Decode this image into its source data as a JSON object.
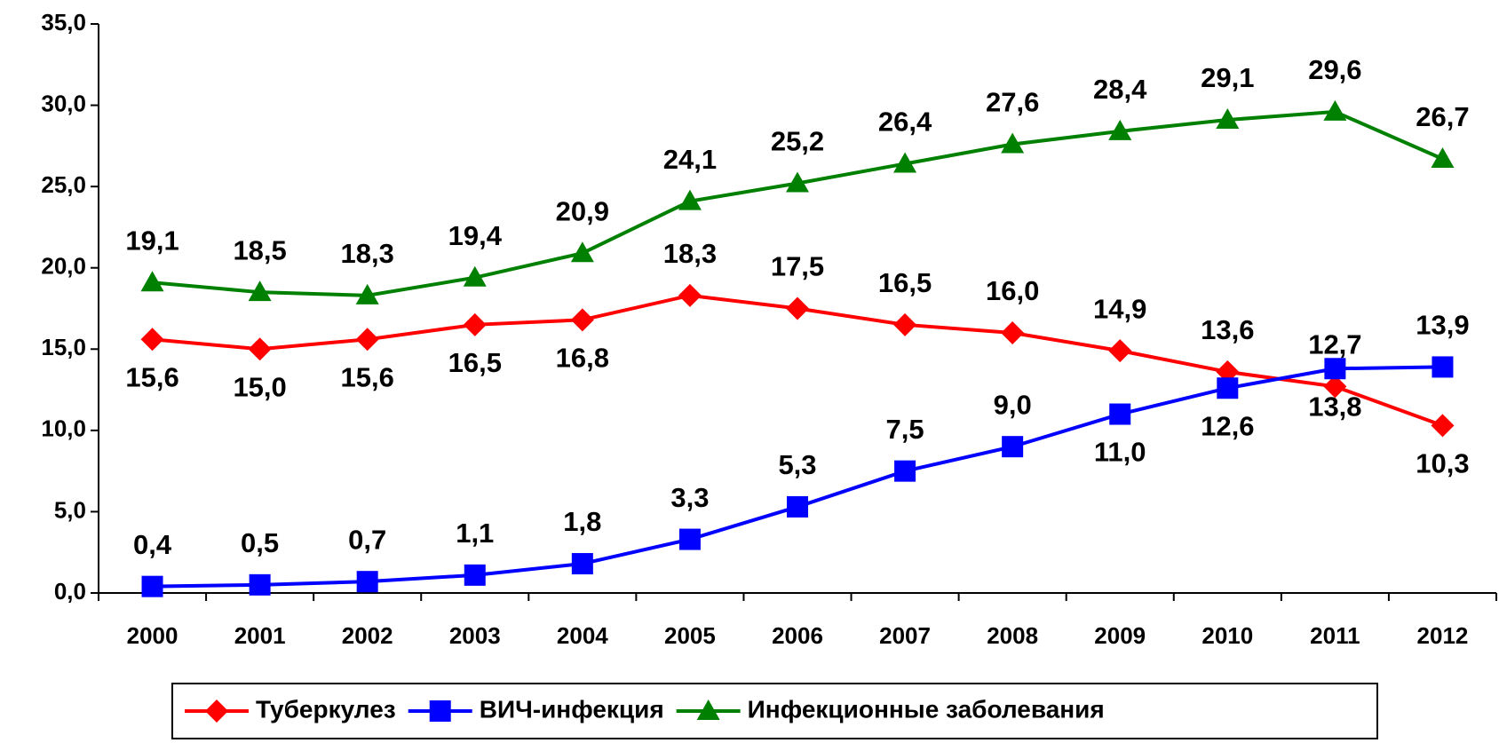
{
  "chart_data": {
    "type": "line",
    "categories": [
      "2000",
      "2001",
      "2002",
      "2003",
      "2004",
      "2005",
      "2006",
      "2007",
      "2008",
      "2009",
      "2010",
      "2011",
      "2012"
    ],
    "series": [
      {
        "name": "Туберкулез",
        "color": "#ff0000",
        "marker": "diamond",
        "values": [
          15.6,
          15.0,
          15.6,
          16.5,
          16.8,
          18.3,
          17.5,
          16.5,
          16.0,
          14.9,
          13.6,
          12.7,
          10.3
        ],
        "value_labels": [
          "15,6",
          "15,0",
          "15,6",
          "16,5",
          "16,8",
          "18,3",
          "17,5",
          "16,5",
          "16,0",
          "14,9",
          "13,6",
          "12,7",
          "10,3"
        ]
      },
      {
        "name": "ВИЧ-инфекция",
        "color": "#0000ff",
        "marker": "square",
        "values": [
          0.4,
          0.5,
          0.7,
          1.1,
          1.8,
          3.3,
          5.3,
          7.5,
          9.0,
          11.0,
          12.6,
          13.8,
          13.9
        ],
        "value_labels": [
          "0,4",
          "0,5",
          "0,7",
          "1,1",
          "1,8",
          "3,3",
          "5,3",
          "7,5",
          "9,0",
          "11,0",
          "12,6",
          "13,8",
          "13,9"
        ]
      },
      {
        "name": "Инфекционные заболевания",
        "color": "#008000",
        "marker": "triangle",
        "values": [
          19.1,
          18.5,
          18.3,
          19.4,
          20.9,
          24.1,
          25.2,
          26.4,
          27.6,
          28.4,
          29.1,
          29.6,
          26.7
        ],
        "value_labels": [
          "19,1",
          "18,5",
          "18,3",
          "19,4",
          "20,9",
          "24,1",
          "25,2",
          "26,4",
          "27,6",
          "28,4",
          "29,1",
          "29,6",
          "26,7"
        ]
      }
    ],
    "ylim": [
      0,
      35
    ],
    "yticks": [
      {
        "value": 0,
        "label": "0,0"
      },
      {
        "value": 5,
        "label": "5,0"
      },
      {
        "value": 10,
        "label": "10,0"
      },
      {
        "value": 15,
        "label": "15,0"
      },
      {
        "value": 20,
        "label": "20,0"
      },
      {
        "value": 25,
        "label": "25,0"
      },
      {
        "value": 30,
        "label": "30,0"
      },
      {
        "value": 35,
        "label": "35,0"
      }
    ],
    "legend": "bottom"
  }
}
